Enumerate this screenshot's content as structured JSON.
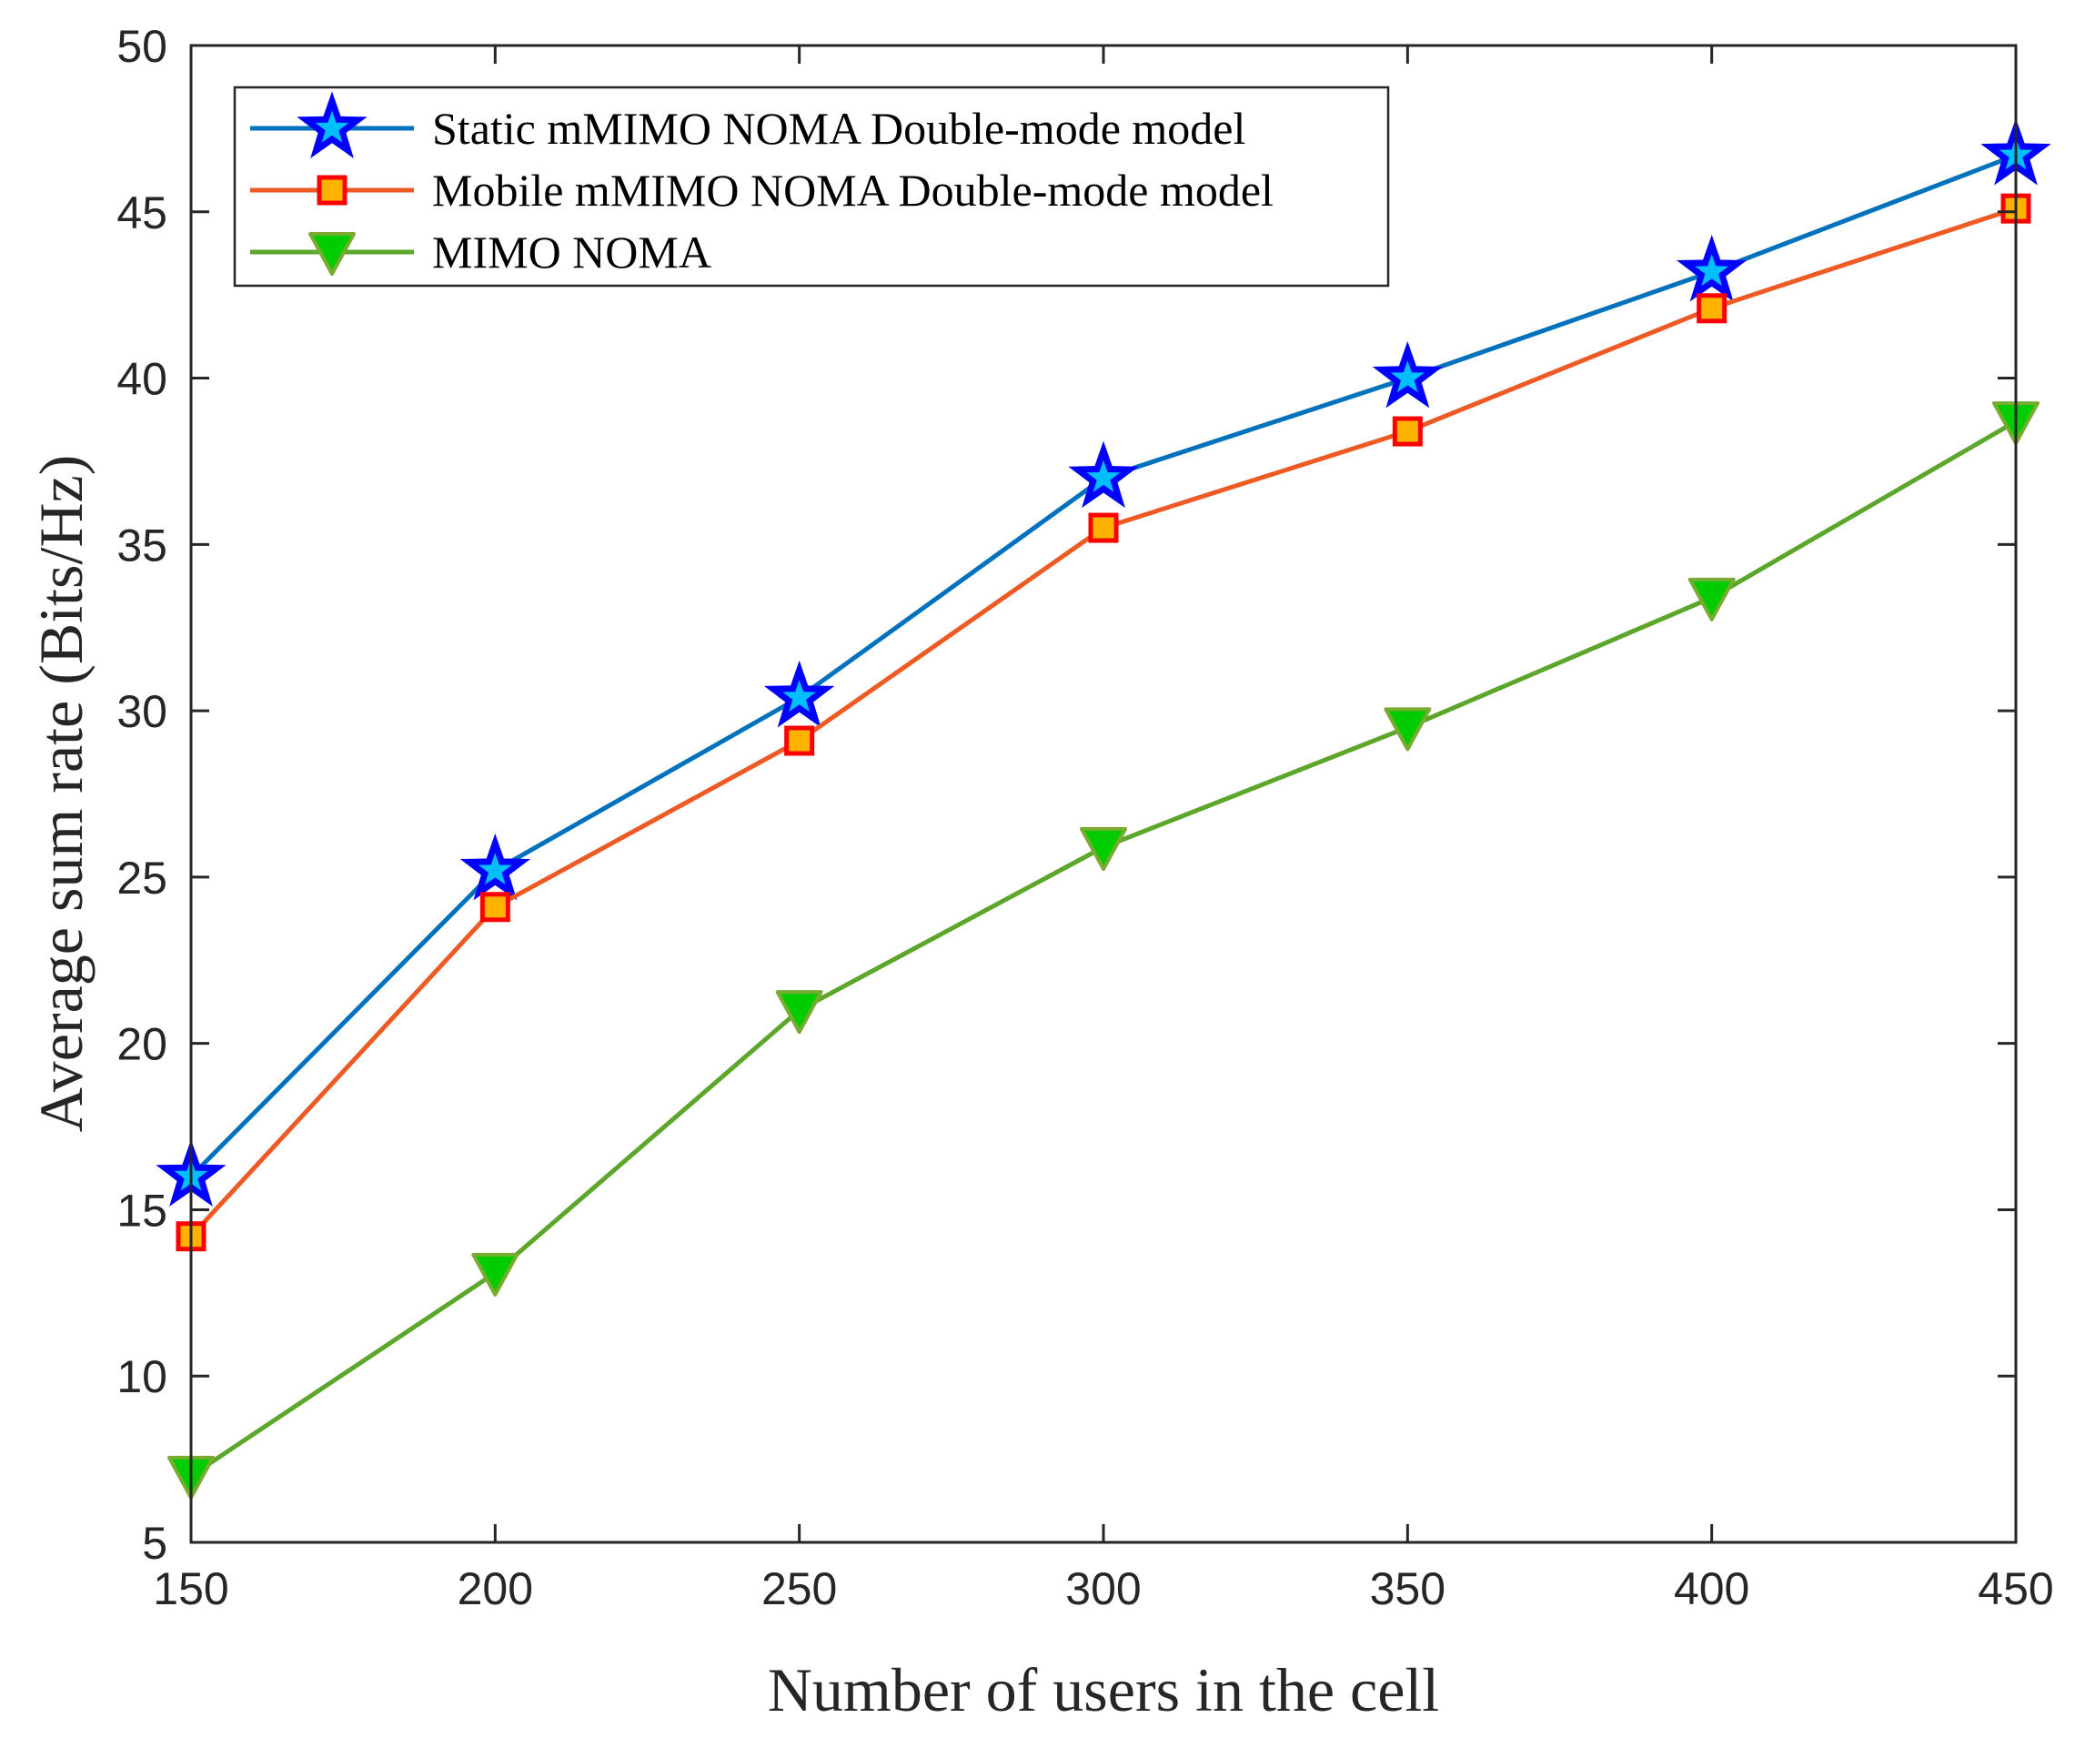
{
  "chart_data": {
    "type": "line",
    "title": "",
    "xlabel": "Number of users in the cell",
    "ylabel": "Average sum rate (Bits/Hz)",
    "x": [
      150,
      200,
      250,
      300,
      350,
      400,
      450
    ],
    "xlim": [
      150,
      450
    ],
    "ylim": [
      5,
      50
    ],
    "xticks": [
      "150",
      "200",
      "250",
      "300",
      "350",
      "400",
      "450"
    ],
    "yticks": [
      "5",
      "10",
      "15",
      "20",
      "25",
      "30",
      "35",
      "40",
      "45",
      "50"
    ],
    "grid": false,
    "legend_position": "top-left",
    "series": [
      {
        "name": "Static mMIMO NOMA Double-mode model",
        "values": [
          16.0,
          25.2,
          30.4,
          37.0,
          40.0,
          43.2,
          46.7
        ],
        "color": "#0072BD",
        "marker": "star",
        "marker_fill": "#00BFFF",
        "marker_edge": "#0000FF"
      },
      {
        "name": "Mobile mMIMO NOMA Double-mode model",
        "values": [
          14.2,
          24.1,
          29.1,
          35.5,
          38.4,
          42.1,
          45.1
        ],
        "color": "#EE5A24",
        "marker": "square",
        "marker_fill": "#FFB300",
        "marker_edge": "#FF0000"
      },
      {
        "name": "MIMO NOMA",
        "values": [
          7.0,
          13.1,
          21.0,
          25.9,
          29.5,
          33.4,
          38.7
        ],
        "color": "#5BA62B",
        "marker": "triangle-down",
        "marker_fill": "#00CC00",
        "marker_edge": "#77AC30"
      }
    ]
  }
}
